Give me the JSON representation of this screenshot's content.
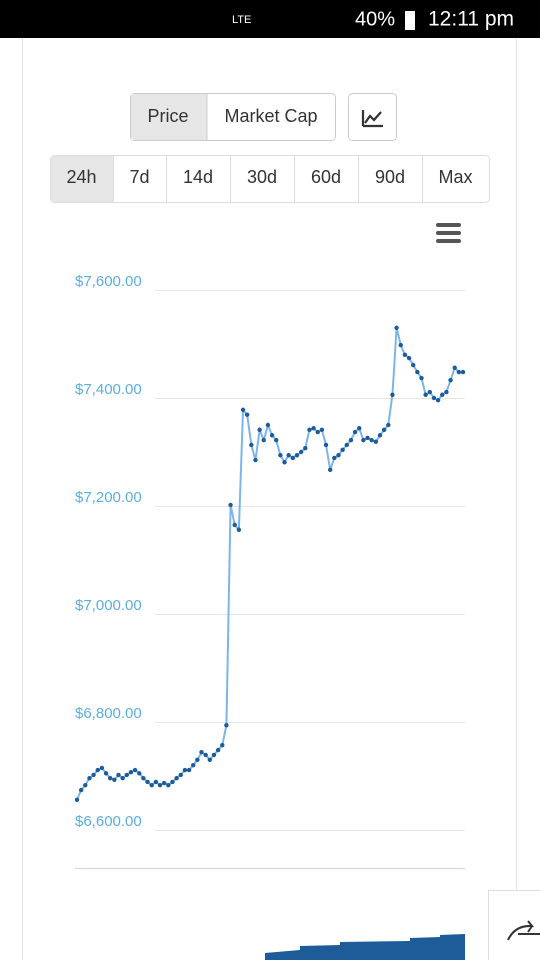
{
  "status_bar": {
    "battery": "40%",
    "time": "12:11 pm",
    "network": "LTE"
  },
  "toggle": [
    "Price",
    "Market Cap"
  ],
  "ranges": [
    "24h",
    "7d",
    "14d",
    "30d",
    "60d",
    "90d",
    "Max"
  ],
  "chart_data": {
    "type": "line",
    "color": "#7cb5ec",
    "marker_color": "#1d5c99",
    "grid": true,
    "ylim": [
      6600,
      7600
    ],
    "yticks": [
      {
        "value": 6600,
        "label": "$6,600.00"
      },
      {
        "value": 6800,
        "label": "$6,800.00"
      },
      {
        "value": 7000,
        "label": "$7,000.00"
      },
      {
        "value": 7200,
        "label": "$7,200.00"
      },
      {
        "value": 7400,
        "label": "$7,400.00"
      },
      {
        "value": 7600,
        "label": "$7,600.00"
      }
    ],
    "values": [
      6656,
      6674,
      6683,
      6696,
      6702,
      6711,
      6715,
      6705,
      6696,
      6693,
      6702,
      6696,
      6702,
      6707,
      6711,
      6705,
      6696,
      6689,
      6683,
      6689,
      6683,
      6687,
      6683,
      6689,
      6696,
      6702,
      6711,
      6711,
      6720,
      6730,
      6744,
      6739,
      6730,
      6739,
      6748,
      6757,
      6794,
      7202,
      7165,
      7156,
      7378,
      7369,
      7313,
      7285,
      7341,
      7322,
      7350,
      7331,
      7322,
      7294,
      7281,
      7294,
      7289,
      7294,
      7300,
      7307,
      7341,
      7344,
      7337,
      7341,
      7313,
      7267,
      7289,
      7294,
      7304,
      7313,
      7322,
      7337,
      7344,
      7322,
      7326,
      7322,
      7319,
      7331,
      7341,
      7350,
      7406,
      7530,
      7498,
      7480,
      7474,
      7461,
      7448,
      7437,
      7406,
      7411,
      7400,
      7396,
      7406,
      7411,
      7433,
      7456,
      7448,
      7448
    ]
  }
}
